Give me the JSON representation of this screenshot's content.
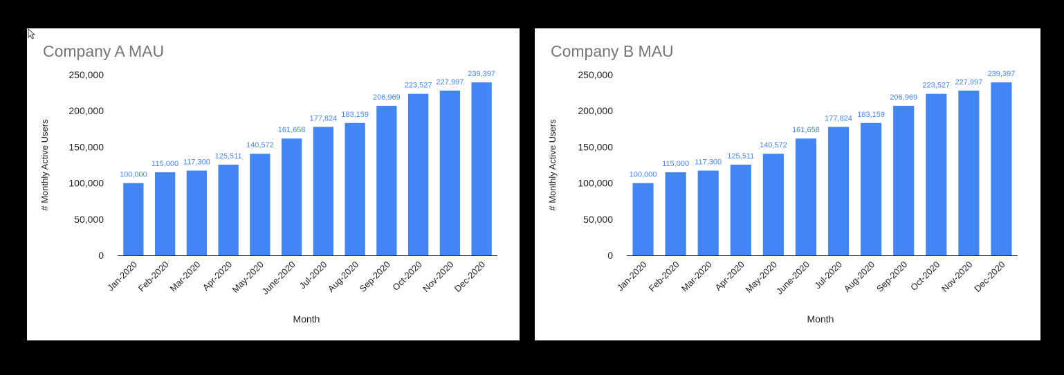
{
  "colors": {
    "background": "#000000",
    "panel": "#ffffff",
    "bar": "#4285f4",
    "data_label": "#4285f4",
    "title": "#757575",
    "axis_text": "#222222",
    "axis_line": "#333333"
  },
  "chart_data": [
    {
      "type": "bar",
      "title": "Company A MAU",
      "xlabel": "Month",
      "ylabel": "# Monthly Active Users",
      "ylim": [
        0,
        250000
      ],
      "yticks": [
        "0",
        "50,000",
        "100,000",
        "150,000",
        "200,000",
        "250,000"
      ],
      "grid": false,
      "categories": [
        "Jan-2020",
        "Feb-2020",
        "Mar-2020",
        "Apr-2020",
        "May-2020",
        "June-2020",
        "Jul-2020",
        "Aug-2020",
        "Sep-2020",
        "Oct-2020",
        "Nov-2020",
        "Dec-2020"
      ],
      "values": [
        100000,
        115000,
        117300,
        125511,
        140572,
        161658,
        177824,
        183159,
        206969,
        223527,
        227997,
        239397
      ],
      "data_labels": [
        "100,000",
        "115,000",
        "117,300",
        "125,511",
        "140,572",
        "161,658",
        "177,824",
        "183,159",
        "206,969",
        "223,527",
        "227,997",
        "239,397"
      ]
    },
    {
      "type": "bar",
      "title": "Company B MAU",
      "xlabel": "Month",
      "ylabel": "# Monthly Active Users",
      "ylim": [
        0,
        250000
      ],
      "yticks": [
        "0",
        "50,000",
        "100,000",
        "150,000",
        "200,000",
        "250,000"
      ],
      "grid": false,
      "categories": [
        "Jan-2020",
        "Feb-2020",
        "Mar-2020",
        "Apr-2020",
        "May-2020",
        "June-2020",
        "Jul-2020",
        "Aug-2020",
        "Sep-2020",
        "Oct-2020",
        "Nov-2020",
        "Dec-2020"
      ],
      "values": [
        100000,
        115000,
        117300,
        125511,
        140572,
        161658,
        177824,
        183159,
        206969,
        223527,
        227997,
        239397
      ],
      "data_labels": [
        "100,000",
        "115,000",
        "117,300",
        "125,511",
        "140,572",
        "161,658",
        "177,824",
        "183,159",
        "206,969",
        "223,527",
        "227,997",
        "239,397"
      ]
    }
  ]
}
